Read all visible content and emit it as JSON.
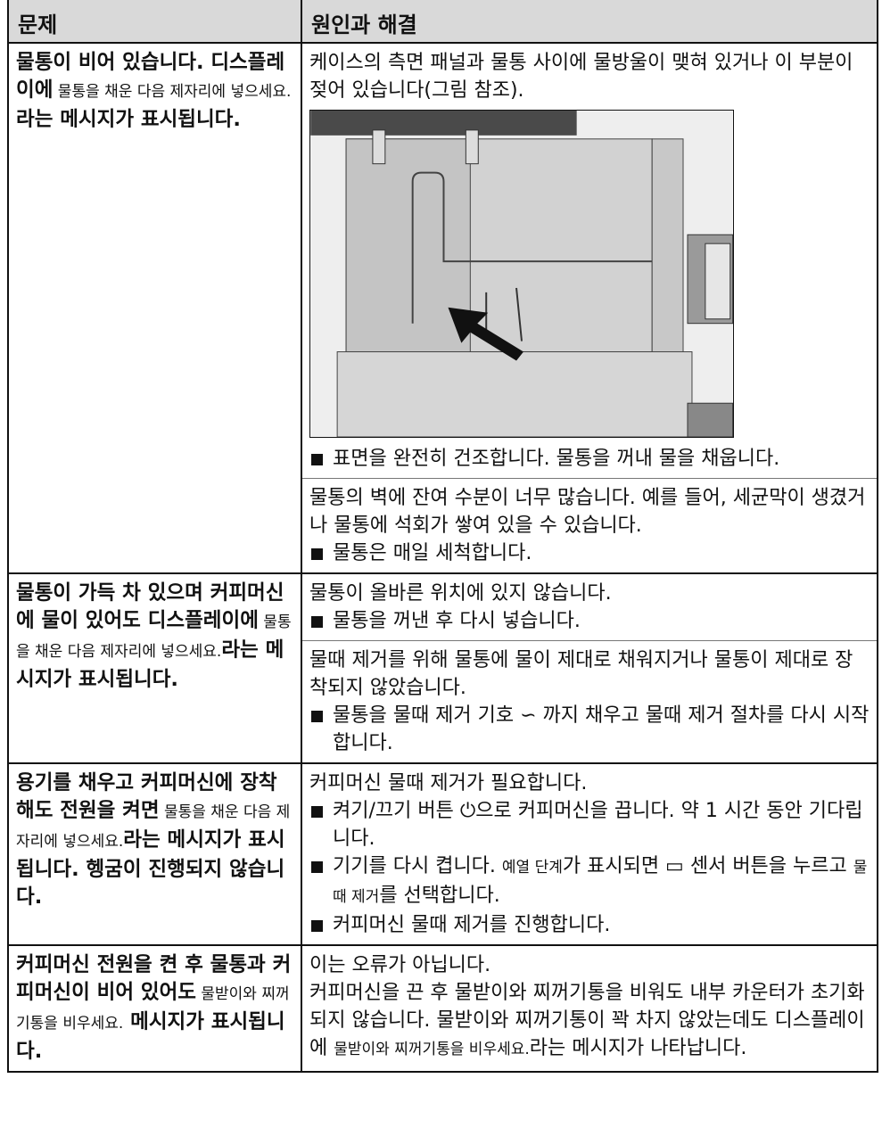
{
  "header": {
    "col1": "문제",
    "col2": "원인과 해결"
  },
  "rows": [
    {
      "problem": [
        {
          "text": "물통이 비어 있습니다. 디스플레이에",
          "style": "bold"
        },
        {
          "text": " 물통을 채운 다음 제자리에 넣으세요.",
          "style": "small"
        },
        {
          "text": "라는 메시지가 표시됩니다.",
          "style": "bold"
        }
      ],
      "solutions": [
        [
          {
            "type": "text",
            "segments": [
              "케이스의 측면 패널과 물통 사이에 물방울이 맺혀 있거나 이 부분이 젖어 있습니다(그림 참조)."
            ]
          },
          {
            "type": "figure"
          },
          {
            "type": "bullet",
            "segments": [
              "표면을 완전히 건조합니다. 물통을 꺼내 물을 채웁니다."
            ]
          }
        ],
        [
          {
            "type": "text",
            "segments": [
              "물통의 벽에 잔여 수분이 너무 많습니다. 예를 들어, 세균막이 생겼거나 물통에 석회가 쌓여 있을 수 있습니다."
            ]
          },
          {
            "type": "bullet",
            "segments": [
              "물통은 매일 세척합니다."
            ]
          }
        ]
      ]
    },
    {
      "problem": [
        {
          "text": "물통이 가득 차 있으며 커피머신에 물이 있어도 디스플레이에",
          "style": "bold"
        },
        {
          "text": " 물통을 채운 다음 제자리에 넣으세요.",
          "style": "small"
        },
        {
          "text": "라는 메시지가 표시됩니다.",
          "style": "bold"
        }
      ],
      "solutions": [
        [
          {
            "type": "text",
            "segments": [
              "물통이 올바른 위치에 있지 않습니다."
            ]
          },
          {
            "type": "bullet",
            "segments": [
              "물통을 꺼낸 후 다시 넣습니다."
            ]
          }
        ],
        [
          {
            "type": "text",
            "segments": [
              "물때 제거를 위해 물통에 물이 제대로 채워지거나 물통이 제대로 장착되지 않았습니다."
            ]
          },
          {
            "type": "bullet",
            "segments": [
              "물통을 물때 제거 기호 ∽ 까지 채우고 물때 제거 절차를 다시 시작합니다."
            ]
          }
        ]
      ]
    },
    {
      "problem": [
        {
          "text": "용기를 채우고 커피머신에 장착해도 전원을 켜면",
          "style": "bold"
        },
        {
          "text": " 물통을 채운 다음 제자리에 넣으세요.",
          "style": "small"
        },
        {
          "text": "라는 메시지가 표시됩니다. 헹굼이 진행되지 않습니다.",
          "style": "bold"
        }
      ],
      "solutions": [
        [
          {
            "type": "text",
            "segments": [
              "커피머신 물때 제거가 필요합니다."
            ]
          },
          {
            "type": "bullet",
            "segments": [
              "켜기/끄기 버튼 ⏻으로 커피머신을 끕니다. 약 1 시간 동안 기다립니다."
            ]
          },
          {
            "type": "bullet",
            "segments": [
              "기기를 다시 켭니다. ",
              {
                "text": "예열 단계",
                "style": "small"
              },
              "가 표시되면 ▭ 센서 버튼을 누르고 ",
              {
                "text": "물때 제거",
                "style": "small"
              },
              "를 선택합니다."
            ]
          },
          {
            "type": "bullet",
            "segments": [
              "커피머신 물때 제거를 진행합니다."
            ]
          }
        ]
      ]
    },
    {
      "problem": [
        {
          "text": "커피머신 전원을 켠 후 물통과 커피머신이 비어 있어도",
          "style": "bold"
        },
        {
          "text": " 물받이와 찌꺼기통을 비우세요.",
          "style": "small"
        },
        {
          "text": " 메시지가 표시됩니다.",
          "style": "bold"
        }
      ],
      "solutions": [
        [
          {
            "type": "text",
            "segments": [
              "이는 오류가 아닙니다."
            ]
          },
          {
            "type": "text",
            "segments": [
              "커피머신을 끈 후 물받이와 찌꺼기통을 비워도 내부 카운터가 초기화되지 않습니다. 물받이와 찌꺼기통이 꽉 차지 않았는데도 디스플레이에 ",
              {
                "text": "물받이와 찌꺼기통을 비우세요.",
                "style": "small"
              },
              "라는 메시지가 나타납니다."
            ]
          }
        ]
      ]
    }
  ]
}
